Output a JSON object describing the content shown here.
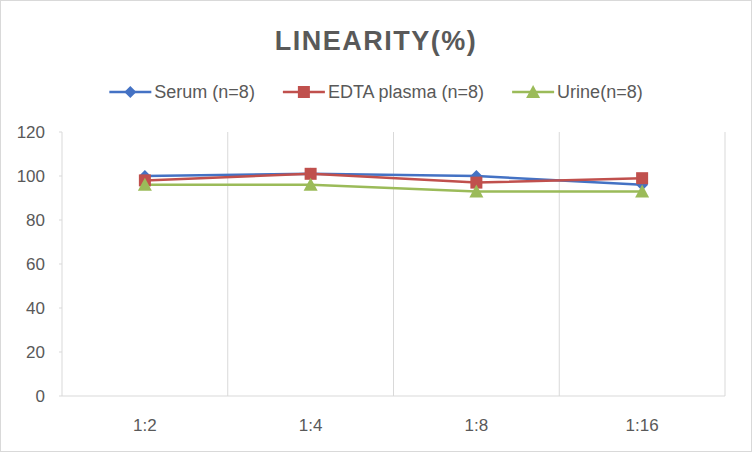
{
  "chart_data": {
    "type": "line",
    "title": "LINEARITY(%)",
    "categories": [
      "1:2",
      "1:4",
      "1:8",
      "1:16"
    ],
    "series": [
      {
        "name": "Serum (n=8)",
        "color": "#4472c4",
        "marker": "diamond",
        "values": [
          100,
          101,
          100,
          96
        ]
      },
      {
        "name": "EDTA plasma (n=8)",
        "color": "#c0504d",
        "marker": "square",
        "values": [
          98,
          101,
          97,
          99
        ]
      },
      {
        "name": "Urine(n=8)",
        "color": "#9bbb59",
        "marker": "triangle",
        "values": [
          96,
          96,
          93,
          93
        ]
      }
    ],
    "ylim": [
      0,
      120
    ],
    "yticks": [
      0,
      20,
      40,
      60,
      80,
      100,
      120
    ],
    "grid": true,
    "legend": "top"
  }
}
